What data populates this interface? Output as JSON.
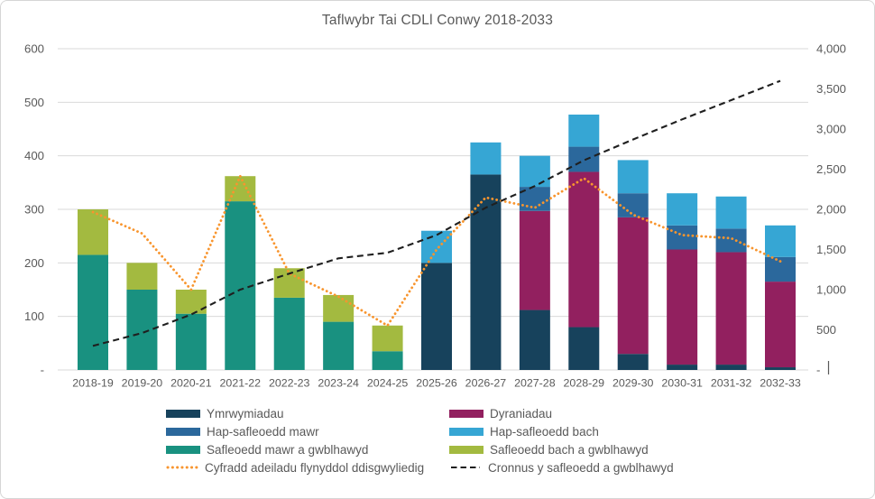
{
  "chart_data": {
    "type": "bar",
    "subtype": "stacked-column-with-lines",
    "title": "Taflwybr Tai CDLl Conwy 2018-2033",
    "grid": true,
    "legend_position": "bottom",
    "categories": [
      "2018-19",
      "2019-20",
      "2020-21",
      "2021-22",
      "2022-23",
      "2023-24",
      "2024-25",
      "2025-26",
      "2026-27",
      "2027-28",
      "2028-29",
      "2029-30",
      "2030-31",
      "2031-32",
      "2032-33"
    ],
    "stacked_series": [
      {
        "name": "Ymrwymiadau",
        "color": "#17425c",
        "values": [
          0,
          0,
          0,
          0,
          0,
          0,
          0,
          200,
          365,
          112,
          80,
          30,
          10,
          10,
          5
        ]
      },
      {
        "name": "Dyraniadau",
        "color": "#92205f",
        "values": [
          0,
          0,
          0,
          0,
          0,
          0,
          0,
          0,
          0,
          185,
          290,
          255,
          215,
          210,
          160
        ]
      },
      {
        "name": "Hap-safleoedd mawr",
        "color": "#2b689c",
        "values": [
          0,
          0,
          0,
          0,
          0,
          0,
          0,
          0,
          0,
          45,
          47,
          45,
          45,
          44,
          46
        ]
      },
      {
        "name": "Hap-safleoedd bach",
        "color": "#36a6d4",
        "values": [
          0,
          0,
          0,
          0,
          0,
          0,
          0,
          60,
          60,
          58,
          60,
          62,
          60,
          60,
          59
        ]
      },
      {
        "name": "Safleoedd mawr a gwblhawyd",
        "color": "#199180",
        "values": [
          215,
          150,
          105,
          315,
          135,
          90,
          35,
          0,
          0,
          0,
          0,
          0,
          0,
          0,
          0
        ]
      },
      {
        "name": "Safleoedd bach a gwblhawyd",
        "color": "#a3ba40",
        "values": [
          85,
          50,
          45,
          47,
          55,
          50,
          48,
          0,
          0,
          0,
          0,
          0,
          0,
          0,
          0
        ]
      }
    ],
    "line_series": [
      {
        "name": "Cyfradd adeiladu flynyddol ddisgwyliedig",
        "color": "#f8952e",
        "style": "dotted",
        "axis": "left",
        "values": [
          295,
          255,
          150,
          362,
          180,
          137,
          83,
          225,
          322,
          303,
          358,
          290,
          252,
          246,
          203
        ]
      },
      {
        "name": "Cronnus y safleoedd a gwblhawyd",
        "color": "#1f1f1f",
        "style": "dashed",
        "axis": "right",
        "values": [
          300,
          460,
          690,
          1000,
          1200,
          1390,
          1460,
          1680,
          2020,
          2290,
          2610,
          2870,
          3120,
          3360,
          3600
        ]
      }
    ],
    "left_axis": {
      "min": 0,
      "max": 600,
      "tick_labels": [
        "600",
        "500",
        "400",
        "300",
        "200",
        "100",
        "-"
      ]
    },
    "right_axis": {
      "min": 0,
      "max": 4000,
      "tick_labels": [
        "4,000",
        "3,500",
        "3,000",
        "2,500",
        "2,000",
        "1,500",
        "1,000",
        "500",
        "-"
      ]
    },
    "colors": {
      "grid": "#d9d9d9",
      "text": "#595959"
    }
  }
}
